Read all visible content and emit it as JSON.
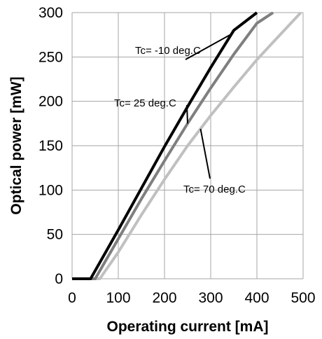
{
  "chart_data": {
    "type": "line",
    "title": "",
    "xlabel": "Operating current [mA]",
    "ylabel": "Optical power [mW]",
    "xlim": [
      0,
      500
    ],
    "ylim": [
      0,
      300
    ],
    "xticks": [
      0,
      100,
      200,
      300,
      400,
      500
    ],
    "yticks": [
      0,
      50,
      100,
      150,
      200,
      250,
      300
    ],
    "grid": true,
    "legend": "none",
    "series": [
      {
        "label": "Tc= -10 deg.C",
        "color": "#000000",
        "x": [
          0,
          40,
          100,
          150,
          200,
          250,
          300,
          350,
          400
        ],
        "y": [
          0,
          0,
          55,
          102,
          149,
          194,
          238,
          280,
          300
        ]
      },
      {
        "label": "Tc= 25 deg.C",
        "color": "#7f7f7f",
        "x": [
          0,
          50,
          100,
          150,
          200,
          250,
          300,
          350,
          400,
          435
        ],
        "y": [
          0,
          0,
          45,
          90,
          133,
          175,
          215,
          253,
          288,
          300
        ]
      },
      {
        "label": "Tc= 70 deg.C",
        "color": "#c0c0c0",
        "x": [
          0,
          60,
          100,
          150,
          200,
          250,
          300,
          350,
          400,
          450,
          495
        ],
        "y": [
          0,
          0,
          30,
          72,
          112,
          150,
          184,
          216,
          247,
          275,
          300
        ]
      }
    ]
  }
}
